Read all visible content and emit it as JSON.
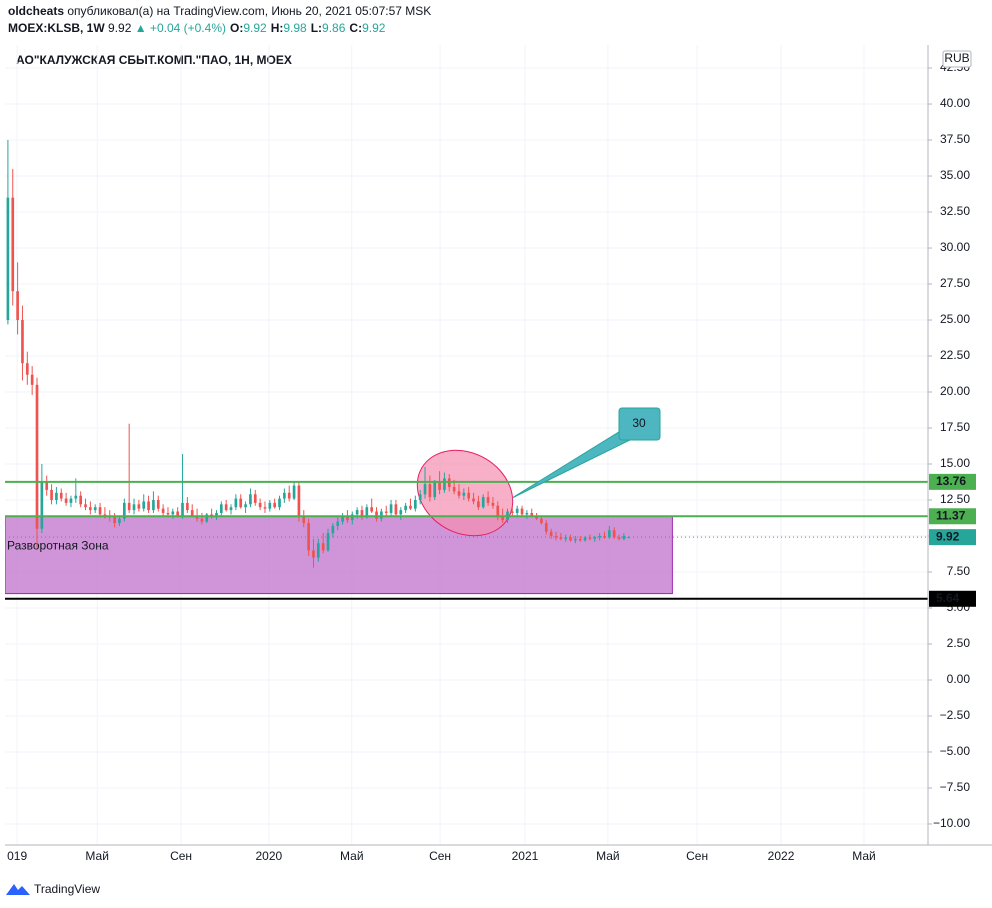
{
  "header": {
    "user": "oldcheats",
    "published": "опубликовал(а) на TradingView.com, Июнь 20, 2021 05:07:57 MSK",
    "symbol": "MOEX:KLSB, 1W",
    "price": "9.92",
    "change": "▲ +0.04 (+0.4%)",
    "ohlc": [
      [
        "O:",
        "9.92"
      ],
      [
        "H:",
        "9.98"
      ],
      [
        "L:",
        "9.86"
      ],
      [
        "C:",
        "9.92"
      ]
    ]
  },
  "chart_data": {
    "type": "candlestick",
    "title": "АО\"КАЛУЖСКАЯ СБЫТ.КОМП.\"ПАО, 1Н, MOEX",
    "currency": "RUB",
    "up_color": "#26a69a",
    "down_color": "#ef5350",
    "grid": true,
    "ylim": [
      -11.46,
      44.1
    ],
    "yticks": [
      {
        "value": -10,
        "label": "−10.00"
      },
      {
        "value": -7.5,
        "label": "−7.50"
      },
      {
        "value": -5,
        "label": "−5.00"
      },
      {
        "value": -2.5,
        "label": "−2.50"
      },
      {
        "value": 0,
        "label": "0.00"
      },
      {
        "value": 2.5,
        "label": "2.50"
      },
      {
        "value": 5,
        "label": "5.00"
      },
      {
        "value": 7.5,
        "label": "7.50"
      },
      {
        "value": 10,
        "label": "10.00"
      },
      {
        "value": 12.5,
        "label": "12.50"
      },
      {
        "value": 15,
        "label": "15.00"
      },
      {
        "value": 17.5,
        "label": "17.50"
      },
      {
        "value": 20,
        "label": "20.00"
      },
      {
        "value": 22.5,
        "label": "22.50"
      },
      {
        "value": 25,
        "label": "25.00"
      },
      {
        "value": 27.5,
        "label": "27.50"
      },
      {
        "value": 30,
        "label": "30.00"
      },
      {
        "value": 32.5,
        "label": "32.50"
      },
      {
        "value": 35,
        "label": "35.00"
      },
      {
        "value": 37.5,
        "label": "37.50"
      },
      {
        "value": 40,
        "label": "40.00"
      },
      {
        "value": 42.5,
        "label": "42.50"
      }
    ],
    "xlim": [
      -0.6,
      189.7
    ],
    "xticks": [
      {
        "value": 1.9,
        "label": "019"
      },
      {
        "value": 18.4,
        "label": "Май"
      },
      {
        "value": 35.7,
        "label": "Сен"
      },
      {
        "value": 53.8,
        "label": "2020"
      },
      {
        "value": 70.9,
        "label": "Май"
      },
      {
        "value": 89.1,
        "label": "Сен"
      },
      {
        "value": 106.6,
        "label": "2021"
      },
      {
        "value": 123.7,
        "label": "Май"
      },
      {
        "value": 142.1,
        "label": "Сен"
      },
      {
        "value": 159.4,
        "label": "2022"
      },
      {
        "value": 176.5,
        "label": "Май"
      }
    ],
    "candles": [
      [
        25,
        37.5,
        24.7,
        33.5
      ],
      [
        33.5,
        35.5,
        26,
        27
      ],
      [
        27,
        29,
        24,
        25
      ],
      [
        25,
        26,
        20.8,
        22
      ],
      [
        22,
        22.8,
        20.5,
        21.2
      ],
      [
        21.2,
        21.8,
        19.8,
        20.5
      ],
      [
        20.5,
        21,
        9.2,
        10.5
      ],
      [
        10.5,
        15,
        10.2,
        13.8
      ],
      [
        13.8,
        14.2,
        12.8,
        13.2
      ],
      [
        13.2,
        13.6,
        12.2,
        12.5
      ],
      [
        12.5,
        13.4,
        12.2,
        13.0
      ],
      [
        13.0,
        13.3,
        12.4,
        12.6
      ],
      [
        12.6,
        13.0,
        12.1,
        12.3
      ],
      [
        12.3,
        12.8,
        12.0,
        12.6
      ],
      [
        12.6,
        14,
        12.3,
        12.8
      ],
      [
        12.8,
        13.1,
        12.0,
        12.2
      ],
      [
        12.2,
        12.6,
        11.8,
        12.0
      ],
      [
        12.0,
        12.4,
        11.5,
        11.8
      ],
      [
        11.8,
        12.2,
        11.6,
        12.0
      ],
      [
        12.0,
        12.3,
        11.3,
        11.5
      ],
      [
        11.5,
        12.0,
        11.2,
        11.4
      ],
      [
        11.4,
        11.8,
        11.0,
        11.3
      ],
      [
        11.3,
        11.6,
        10.6,
        10.9
      ],
      [
        10.9,
        11.4,
        10.7,
        11.2
      ],
      [
        11.2,
        12.6,
        11.0,
        12.3
      ],
      [
        12.3,
        17.8,
        11.6,
        11.8
      ],
      [
        11.8,
        12.6,
        11.5,
        12.2
      ],
      [
        12.2,
        12.5,
        11.7,
        11.9
      ],
      [
        11.9,
        12.9,
        11.7,
        12.4
      ],
      [
        12.4,
        12.8,
        11.6,
        11.8
      ],
      [
        11.8,
        13.1,
        11.6,
        12.5
      ],
      [
        12.5,
        12.8,
        11.7,
        11.9
      ],
      [
        11.9,
        12.2,
        11.4,
        11.6
      ],
      [
        11.6,
        12.0,
        11.3,
        11.5
      ],
      [
        11.5,
        11.9,
        11.2,
        11.7
      ],
      [
        11.7,
        12.0,
        11.3,
        11.4
      ],
      [
        11.4,
        15.7,
        11.2,
        12.3
      ],
      [
        12.3,
        12.7,
        11.6,
        11.8
      ],
      [
        11.8,
        12.2,
        11.3,
        11.4
      ],
      [
        11.4,
        11.9,
        11.0,
        11.2
      ],
      [
        11.2,
        11.6,
        10.8,
        11.0
      ],
      [
        11.0,
        11.6,
        10.9,
        11.5
      ],
      [
        11.5,
        11.9,
        11.2,
        11.3
      ],
      [
        11.3,
        11.8,
        11.1,
        11.6
      ],
      [
        11.6,
        12.4,
        11.4,
        12.2
      ],
      [
        12.2,
        12.5,
        11.7,
        11.8
      ],
      [
        11.8,
        12.2,
        11.5,
        12.0
      ],
      [
        12.0,
        12.9,
        11.8,
        12.6
      ],
      [
        12.6,
        12.9,
        11.9,
        12.0
      ],
      [
        12.0,
        12.4,
        11.6,
        12.2
      ],
      [
        12.2,
        13.3,
        12.0,
        12.9
      ],
      [
        12.9,
        13.2,
        12.1,
        12.3
      ],
      [
        12.3,
        12.6,
        11.8,
        12.0
      ],
      [
        12.0,
        12.4,
        11.6,
        11.9
      ],
      [
        11.9,
        12.5,
        11.7,
        12.3
      ],
      [
        12.3,
        12.6,
        11.9,
        12.0
      ],
      [
        12.0,
        12.8,
        11.8,
        12.6
      ],
      [
        12.6,
        13.3,
        12.3,
        13.0
      ],
      [
        13.0,
        13.5,
        12.4,
        12.6
      ],
      [
        12.6,
        13.8,
        12.5,
        13.5
      ],
      [
        13.5,
        13.8,
        11.0,
        11.4
      ],
      [
        11.4,
        11.8,
        10.6,
        10.9
      ],
      [
        10.9,
        11.2,
        8.6,
        9.0
      ],
      [
        9.0,
        9.8,
        7.8,
        8.5
      ],
      [
        8.5,
        9.8,
        8.2,
        9.5
      ],
      [
        9.5,
        10.2,
        8.8,
        9.0
      ],
      [
        9.0,
        10.5,
        8.9,
        10.2
      ],
      [
        10.2,
        10.9,
        9.9,
        10.7
      ],
      [
        10.7,
        11.3,
        10.4,
        11.0
      ],
      [
        11.0,
        11.6,
        10.8,
        11.4
      ],
      [
        11.4,
        11.8,
        10.9,
        11.1
      ],
      [
        11.1,
        11.7,
        10.8,
        11.5
      ],
      [
        11.5,
        12.0,
        11.2,
        11.8
      ],
      [
        11.8,
        12.1,
        11.1,
        11.3
      ],
      [
        11.3,
        12.2,
        11.2,
        12.0
      ],
      [
        12.0,
        12.6,
        11.6,
        11.7
      ],
      [
        11.7,
        12.0,
        11.0,
        11.2
      ],
      [
        11.2,
        11.9,
        11.0,
        11.7
      ],
      [
        11.7,
        12.1,
        11.4,
        11.6
      ],
      [
        11.6,
        12.5,
        11.4,
        12.2
      ],
      [
        12.2,
        12.5,
        11.3,
        11.5
      ],
      [
        11.5,
        12.0,
        11.1,
        11.8
      ],
      [
        11.8,
        12.3,
        11.6,
        12.1
      ],
      [
        12.1,
        12.6,
        11.8,
        11.9
      ],
      [
        11.9,
        12.8,
        11.7,
        12.5
      ],
      [
        12.5,
        13.2,
        12.2,
        12.9
      ],
      [
        12.9,
        14.8,
        12.6,
        13.6
      ],
      [
        13.6,
        14.2,
        12.4,
        12.7
      ],
      [
        12.7,
        13.9,
        12.5,
        13.7
      ],
      [
        13.7,
        14.5,
        12.9,
        13.2
      ],
      [
        13.2,
        14.4,
        13.0,
        14.0
      ],
      [
        14.0,
        14.3,
        13.1,
        13.4
      ],
      [
        13.4,
        13.9,
        12.9,
        13.1
      ],
      [
        13.1,
        13.6,
        12.6,
        12.8
      ],
      [
        12.8,
        13.3,
        12.5,
        13.0
      ],
      [
        13.0,
        13.4,
        12.4,
        12.6
      ],
      [
        12.6,
        13.0,
        12.2,
        12.4
      ],
      [
        12.4,
        12.8,
        11.8,
        12.0
      ],
      [
        12.0,
        12.9,
        11.9,
        12.7
      ],
      [
        12.7,
        13.1,
        12.1,
        12.3
      ],
      [
        12.3,
        12.7,
        11.9,
        12.1
      ],
      [
        12.1,
        12.4,
        11.1,
        11.4
      ],
      [
        11.4,
        11.9,
        10.9,
        11.1
      ],
      [
        11.1,
        11.9,
        10.9,
        11.7
      ],
      [
        11.7,
        12.0,
        11.4,
        11.6
      ],
      [
        11.6,
        12.1,
        11.3,
        11.9
      ],
      [
        11.9,
        12.1,
        11.4,
        11.5
      ],
      [
        11.5,
        11.8,
        11.2,
        11.6
      ],
      [
        11.6,
        11.9,
        11.3,
        11.4
      ],
      [
        11.4,
        11.6,
        11.1,
        11.2
      ],
      [
        11.2,
        11.4,
        10.8,
        10.9
      ],
      [
        10.9,
        11.1,
        10.1,
        10.3
      ],
      [
        10.3,
        10.5,
        9.8,
        10.0
      ],
      [
        10.0,
        10.3,
        9.7,
        9.9
      ],
      [
        9.9,
        10.2,
        9.7,
        9.8
      ],
      [
        9.8,
        10.1,
        9.6,
        9.9
      ],
      [
        9.9,
        10.1,
        9.6,
        9.7
      ],
      [
        9.7,
        10.0,
        9.5,
        9.8
      ],
      [
        9.8,
        10.0,
        9.6,
        9.7
      ],
      [
        9.7,
        10.0,
        9.6,
        9.9
      ],
      [
        9.9,
        10.1,
        9.7,
        9.8
      ],
      [
        9.8,
        10.0,
        9.6,
        9.9
      ],
      [
        9.9,
        10.2,
        9.7,
        10.0
      ],
      [
        10.0,
        10.3,
        9.8,
        9.9
      ],
      [
        9.9,
        10.7,
        9.8,
        10.4
      ],
      [
        10.4,
        10.6,
        9.8,
        9.9
      ],
      [
        9.9,
        10.1,
        9.7,
        9.8
      ],
      [
        9.8,
        10.2,
        9.7,
        10.0
      ],
      [
        9.92,
        9.98,
        9.86,
        9.92
      ]
    ],
    "levels": [
      {
        "value": 13.76,
        "color": "#4caf50"
      },
      {
        "value": 11.37,
        "color": "#4caf50"
      },
      {
        "value": 5.64,
        "color": "#000000"
      }
    ],
    "last_price": {
      "value": 9.92,
      "color": "#26a69a"
    },
    "zone": {
      "label": "Разворотная Зона",
      "top": 11.37,
      "bottom": 6.0,
      "end": 137,
      "color": "#ba68c8"
    },
    "callout": "30"
  },
  "footer": {
    "brand": "TradingView"
  }
}
